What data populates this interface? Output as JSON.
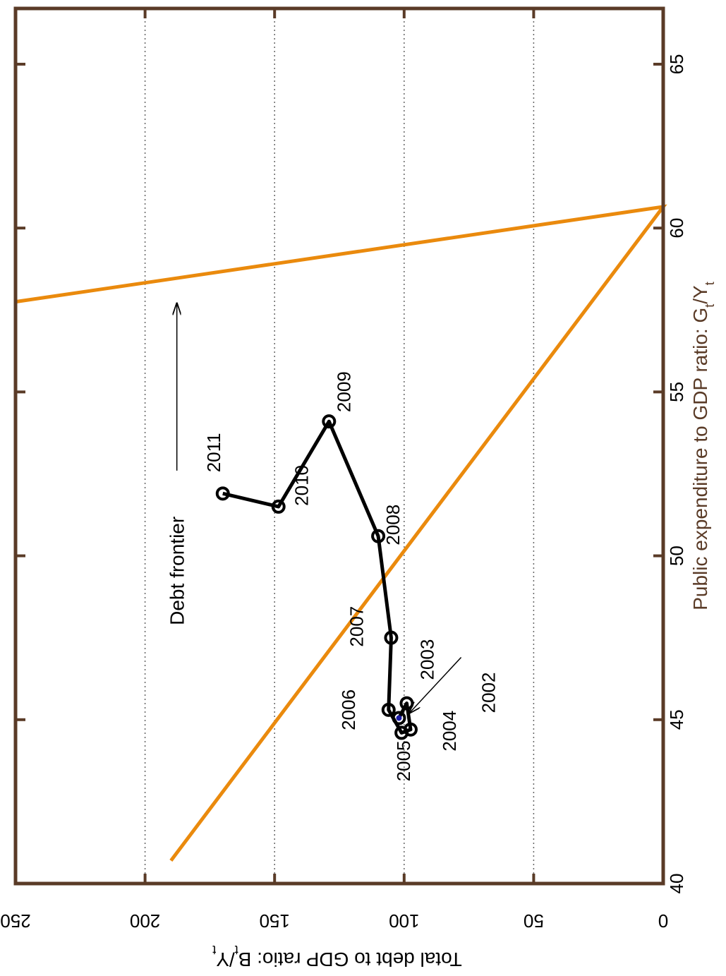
{
  "chart_data": {
    "type": "line",
    "orientation": "rotated-90-clockwise",
    "xlabel": "Public expenditure to GDP ratio: G_t/Y_t",
    "ylabel": "Total debt to GDP ratio: B_t/Y_t",
    "xlim": [
      40,
      66.7
    ],
    "ylim": [
      0,
      250
    ],
    "xticks": [
      "40",
      "45",
      "50",
      "55",
      "60",
      "65"
    ],
    "yticks": [
      "0",
      "50",
      "100",
      "150",
      "200",
      "250"
    ],
    "grid": "horizontal dotted at debt ticks",
    "colors": {
      "axis": "#5a3b27",
      "frontier": "#ea8a0d",
      "path": "#000000",
      "start": "#1a1aa6"
    },
    "series": [
      {
        "type": "line",
        "color": "#ea8a0d",
        "x": [
          40.7,
          60.65,
          57.75
        ],
        "y": [
          190,
          0,
          250
        ]
      },
      {
        "type": "line-markers",
        "color": "#000000",
        "labels": [
          "2002",
          "2003",
          "2004",
          "2005",
          "2006",
          "2007",
          "2008",
          "2009",
          "2010",
          "2011"
        ],
        "x": [
          45.05,
          45.5,
          44.7,
          44.6,
          45.3,
          47.5,
          50.6,
          54.1,
          51.5,
          51.9
        ],
        "y": [
          102,
          99,
          97.5,
          101,
          106,
          105,
          110,
          129,
          148.5,
          170
        ]
      }
    ],
    "annotations": [
      {
        "text": "Debt frontier",
        "x": 52.6,
        "y": 185,
        "arrow_to": [
          57.7,
          185
        ]
      },
      {
        "text": "",
        "x": 46.9,
        "y": 78,
        "arrow_to": [
          45.2,
          98
        ]
      }
    ]
  }
}
